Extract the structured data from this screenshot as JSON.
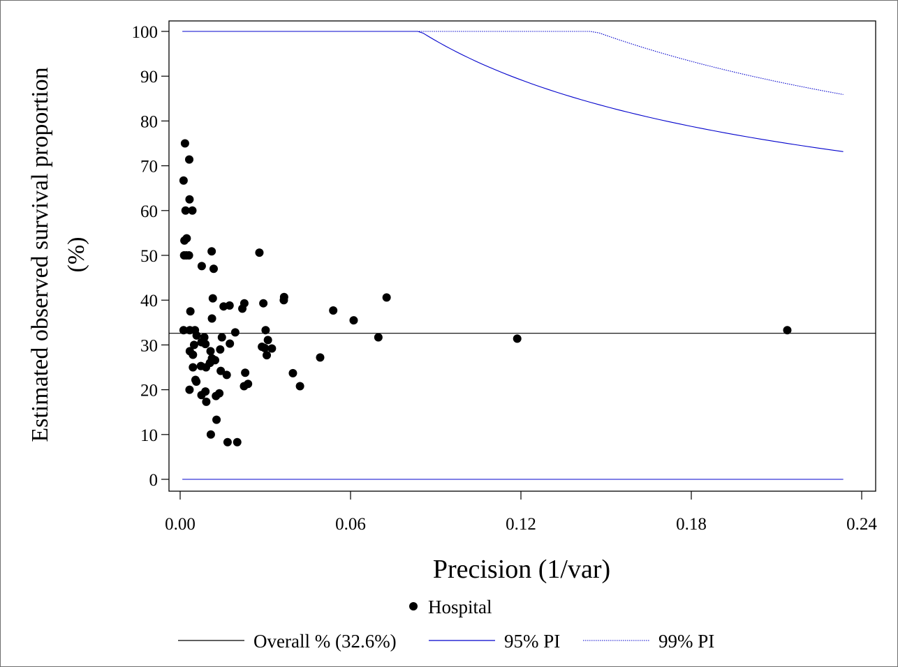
{
  "chart_data": {
    "type": "scatter",
    "title": "",
    "xlabel": "Precision (1/var)",
    "ylabel_lines": [
      "Estimated observed survival proportion",
      "(%)"
    ],
    "xlim": [
      -0.003,
      0.24
    ],
    "ylim": [
      0,
      100
    ],
    "xticks": [
      {
        "value": 0.0,
        "label": "0.00"
      },
      {
        "value": 0.06,
        "label": "0.06"
      },
      {
        "value": 0.12,
        "label": "0.12"
      },
      {
        "value": 0.18,
        "label": "0.18"
      },
      {
        "value": 0.24,
        "label": "0.24"
      }
    ],
    "yticks": [
      {
        "value": 0,
        "label": "0"
      },
      {
        "value": 10,
        "label": "10"
      },
      {
        "value": 20,
        "label": "20"
      },
      {
        "value": 30,
        "label": "30"
      },
      {
        "value": 40,
        "label": "40"
      },
      {
        "value": 50,
        "label": "50"
      },
      {
        "value": 60,
        "label": "60"
      },
      {
        "value": 70,
        "label": "70"
      },
      {
        "value": 80,
        "label": "80"
      },
      {
        "value": 90,
        "label": "90"
      },
      {
        "value": 100,
        "label": "100"
      }
    ],
    "grid": false,
    "legend_position": "bottom",
    "overall": 32.6,
    "overall_legend": "Overall % (32.6%)",
    "series": [
      {
        "name": "Hospital",
        "color": "#000000",
        "marker": "circle",
        "points": [
          [
            0.0017,
            75.0
          ],
          [
            0.0032,
            71.4
          ],
          [
            0.0012,
            66.7
          ],
          [
            0.0033,
            62.5
          ],
          [
            0.0019,
            60.0
          ],
          [
            0.0043,
            60.0
          ],
          [
            0.0023,
            53.8
          ],
          [
            0.0015,
            53.3
          ],
          [
            0.0014,
            50.0
          ],
          [
            0.0022,
            50.0
          ],
          [
            0.0031,
            50.0
          ],
          [
            0.0111,
            50.9
          ],
          [
            0.0279,
            50.6
          ],
          [
            0.0118,
            47.0
          ],
          [
            0.0076,
            47.6
          ],
          [
            0.0115,
            40.4
          ],
          [
            0.0366,
            40.7
          ],
          [
            0.0365,
            40.0
          ],
          [
            0.0727,
            40.6
          ],
          [
            0.0153,
            38.6
          ],
          [
            0.0174,
            38.8
          ],
          [
            0.0219,
            38.1
          ],
          [
            0.0226,
            39.3
          ],
          [
            0.0293,
            39.3
          ],
          [
            0.0036,
            37.5
          ],
          [
            0.0112,
            35.9
          ],
          [
            0.0539,
            37.7
          ],
          [
            0.0611,
            35.5
          ],
          [
            0.0012,
            33.3
          ],
          [
            0.0034,
            33.3
          ],
          [
            0.0052,
            33.3
          ],
          [
            0.0194,
            32.8
          ],
          [
            0.0301,
            33.3
          ],
          [
            0.0058,
            32.1
          ],
          [
            0.0085,
            31.7
          ],
          [
            0.0147,
            31.7
          ],
          [
            0.0309,
            31.1
          ],
          [
            0.0698,
            31.7
          ],
          [
            0.1187,
            31.4
          ],
          [
            0.2138,
            33.3
          ],
          [
            0.0075,
            30.6
          ],
          [
            0.0089,
            30.2
          ],
          [
            0.0175,
            30.3
          ],
          [
            0.0049,
            30.0
          ],
          [
            0.0288,
            29.6
          ],
          [
            0.0298,
            29.3
          ],
          [
            0.0323,
            29.2
          ],
          [
            0.0034,
            28.6
          ],
          [
            0.0107,
            28.6
          ],
          [
            0.0141,
            29.0
          ],
          [
            0.0045,
            27.8
          ],
          [
            0.0305,
            27.7
          ],
          [
            0.0112,
            27.0
          ],
          [
            0.0123,
            26.6
          ],
          [
            0.0493,
            27.2
          ],
          [
            0.0105,
            26.0
          ],
          [
            0.0045,
            25.0
          ],
          [
            0.0073,
            25.3
          ],
          [
            0.0091,
            25.0
          ],
          [
            0.0143,
            24.2
          ],
          [
            0.0164,
            23.3
          ],
          [
            0.0229,
            23.8
          ],
          [
            0.0397,
            23.7
          ],
          [
            0.0054,
            22.2
          ],
          [
            0.0057,
            21.8
          ],
          [
            0.0225,
            20.8
          ],
          [
            0.0239,
            21.3
          ],
          [
            0.0422,
            20.8
          ],
          [
            0.0033,
            20.0
          ],
          [
            0.0089,
            19.6
          ],
          [
            0.0075,
            18.8
          ],
          [
            0.0126,
            18.6
          ],
          [
            0.0138,
            19.2
          ],
          [
            0.0092,
            17.3
          ],
          [
            0.0128,
            13.3
          ],
          [
            0.0108,
            10.0
          ],
          [
            0.0167,
            8.3
          ],
          [
            0.0201,
            8.3
          ]
        ]
      }
    ],
    "limit_lines": [
      {
        "name": "95% PI",
        "color": "#0000cc",
        "style": "solid",
        "z": 1.96
      },
      {
        "name": "99% PI",
        "color": "#0000cc",
        "style": "dotted",
        "z": 2.576
      }
    ],
    "curve_precision_range": [
      0.0008,
      0.2335
    ]
  }
}
